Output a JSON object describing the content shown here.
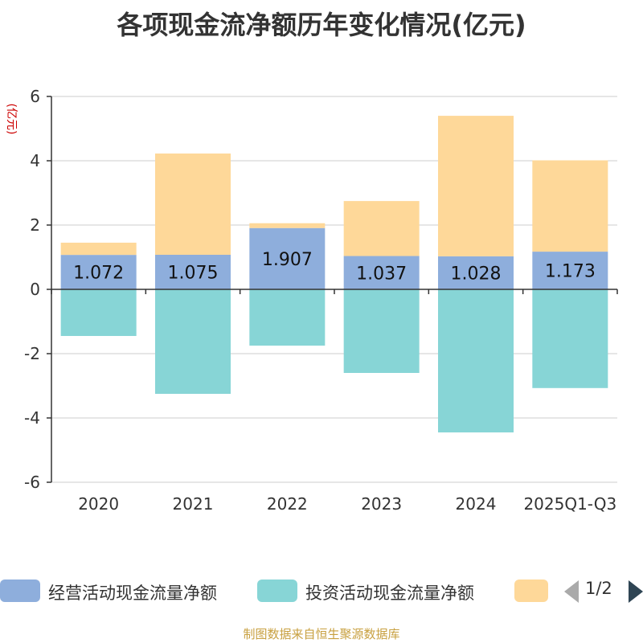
{
  "chart_data": {
    "type": "bar",
    "stacked": true,
    "title": "各项现金流净额历年变化情况(亿元)",
    "ylabel": "(亿元)",
    "ylim": [
      -6,
      6
    ],
    "yticks": [
      6,
      4,
      2,
      0,
      -2,
      -4,
      -6
    ],
    "categories": [
      "2020",
      "2021",
      "2022",
      "2023",
      "2024",
      "2025Q1-Q3"
    ],
    "series": [
      {
        "name": "经营活动现金流量净额",
        "color": "#8eaedc",
        "values": [
          1.072,
          1.075,
          1.907,
          1.037,
          1.028,
          1.173
        ],
        "labels": [
          "1.072",
          "1.075",
          "1.907",
          "1.037",
          "1.028",
          "1.173"
        ]
      },
      {
        "name": "投资活动现金流量净额",
        "color": "#87d5d6",
        "values": [
          -1.45,
          -3.25,
          -1.75,
          -2.6,
          -4.45,
          -3.07
        ]
      },
      {
        "name": "",
        "color": "#fed899",
        "values": [
          0.38,
          3.15,
          0.15,
          1.71,
          4.37,
          2.84
        ]
      }
    ],
    "grid": true,
    "legend": "bottom"
  },
  "pager": {
    "text": "1/2"
  },
  "source": "制图数据来自恒生聚源数据库"
}
